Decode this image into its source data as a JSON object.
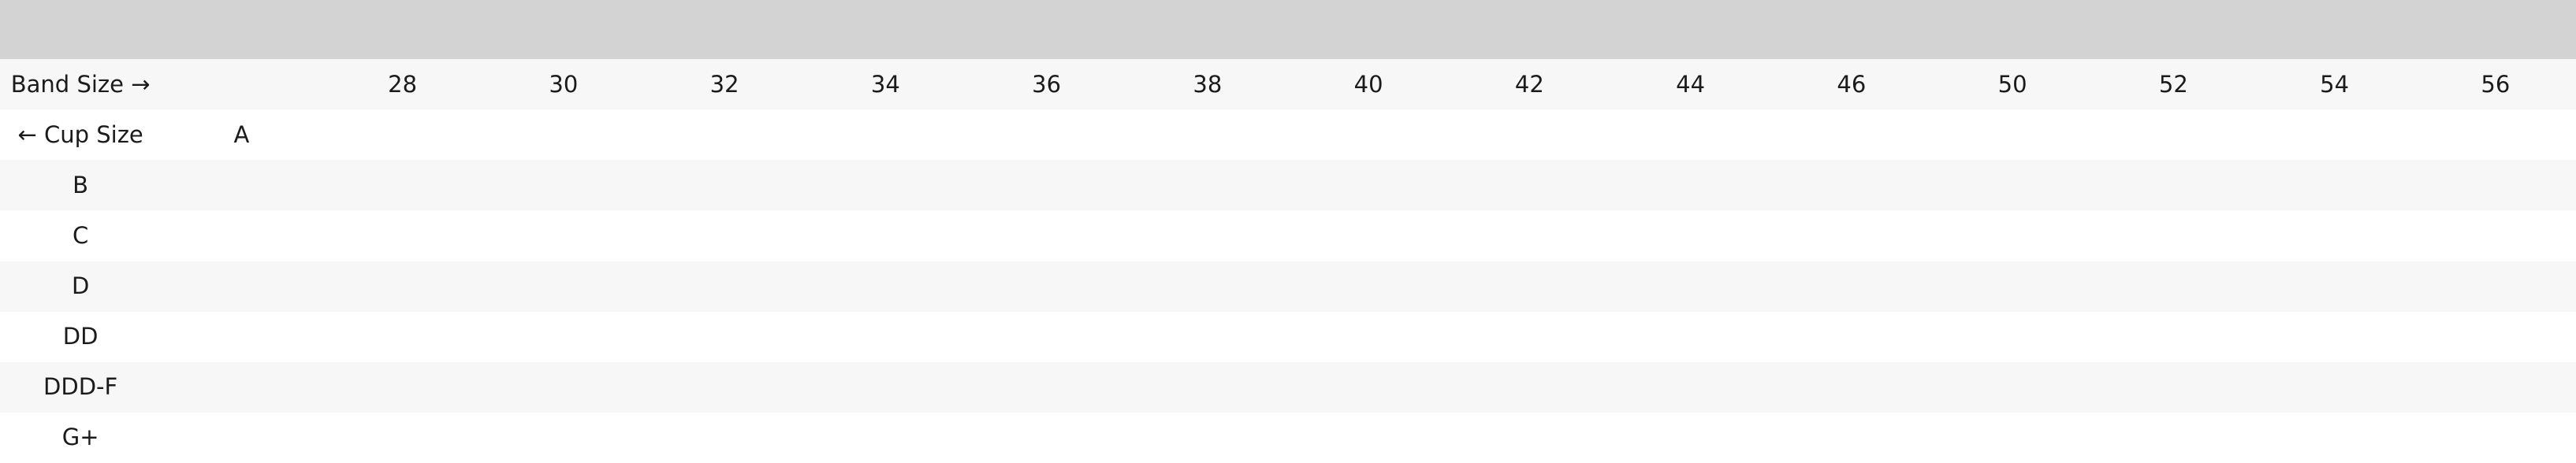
{
  "page": {
    "top_bar_color": "#d3d3d3",
    "stripe_row_color": "#f7f7f7",
    "plain_row_color": "#ffffff",
    "text_color": "#1b1b1b"
  },
  "table": {
    "band_label": "Band Size →",
    "cup_label": "← Cup Size",
    "band_sizes": [
      "28",
      "30",
      "32",
      "34",
      "36",
      "38",
      "40",
      "42",
      "44",
      "46",
      "50",
      "52",
      "54",
      "56"
    ],
    "cup_sizes": [
      "A",
      "B",
      "C",
      "D",
      "DD",
      "DDD-F",
      "G+"
    ]
  }
}
